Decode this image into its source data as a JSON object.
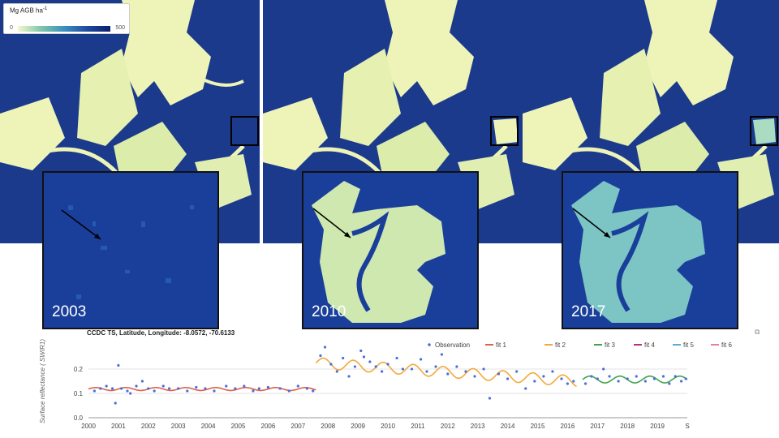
{
  "legend": {
    "title": "Mg AGB ha",
    "exponent": "-1",
    "min": "0",
    "max": "500"
  },
  "panels": [
    {
      "year": "2003"
    },
    {
      "year": "2010"
    },
    {
      "year": "2017"
    }
  ],
  "colors": {
    "low_biomass": "#eef4b8",
    "high_biomass": "#1b3a8c",
    "frame": "#000000"
  },
  "chart_data": {
    "type": "line",
    "title": "CCDC TS, Latitude, Longitude: -8.0572, -70.6133",
    "ylabel": "Surface reflectance ( SWIR1)",
    "xlabel": "",
    "ylim": [
      0,
      0.3
    ],
    "y_ticks": [
      "0.0",
      "0.1",
      "0.2"
    ],
    "x_ticks": [
      "2000",
      "2001",
      "2002",
      "2003",
      "2004",
      "2005",
      "2006",
      "2007",
      "2008",
      "2009",
      "2010",
      "2011",
      "2012",
      "2013",
      "2014",
      "2015",
      "2016",
      "2017",
      "2018",
      "2019",
      "S"
    ],
    "legend_position": "top-right",
    "grid": true,
    "legend": [
      {
        "name": "Observation",
        "color": "#4a6fd8"
      },
      {
        "name": "fit 1",
        "color": "#e0604a"
      },
      {
        "name": "fit 2",
        "color": "#f2a93b"
      },
      {
        "name": "fit 3",
        "color": "#3fa34d"
      },
      {
        "name": "fit 4",
        "color": "#b0308f"
      },
      {
        "name": "fit 5",
        "color": "#5aa9d6"
      },
      {
        "name": "fit 6",
        "color": "#e57fa3"
      }
    ],
    "fits": [
      {
        "name": "fit 1",
        "start": 2000.0,
        "end": 2007.6,
        "mean": 0.118,
        "amp": 0.006
      },
      {
        "name": "fit 2",
        "start": 2007.6,
        "end": 2016.3,
        "mean_start": 0.225,
        "mean_end": 0.15,
        "amp": 0.022
      },
      {
        "name": "fit 3",
        "start": 2016.5,
        "end": 2020.0,
        "mean": 0.157,
        "amp": 0.014
      }
    ],
    "observations": [
      [
        2000.2,
        0.11
      ],
      [
        2000.4,
        0.12
      ],
      [
        2000.6,
        0.13
      ],
      [
        2000.8,
        0.12
      ],
      [
        2000.9,
        0.06
      ],
      [
        2001.0,
        0.215
      ],
      [
        2001.1,
        0.12
      ],
      [
        2001.3,
        0.11
      ],
      [
        2001.4,
        0.1
      ],
      [
        2001.6,
        0.13
      ],
      [
        2001.8,
        0.15
      ],
      [
        2002.0,
        0.12
      ],
      [
        2002.2,
        0.11
      ],
      [
        2002.5,
        0.13
      ],
      [
        2002.7,
        0.12
      ],
      [
        2003.0,
        0.12
      ],
      [
        2003.3,
        0.11
      ],
      [
        2003.6,
        0.125
      ],
      [
        2003.9,
        0.12
      ],
      [
        2004.2,
        0.11
      ],
      [
        2004.6,
        0.13
      ],
      [
        2004.9,
        0.12
      ],
      [
        2005.2,
        0.13
      ],
      [
        2005.5,
        0.11
      ],
      [
        2005.7,
        0.12
      ],
      [
        2006.0,
        0.125
      ],
      [
        2006.4,
        0.12
      ],
      [
        2006.7,
        0.11
      ],
      [
        2007.0,
        0.13
      ],
      [
        2007.3,
        0.12
      ],
      [
        2007.5,
        0.11
      ],
      [
        2007.75,
        0.255
      ],
      [
        2007.9,
        0.29
      ],
      [
        2008.1,
        0.22
      ],
      [
        2008.3,
        0.19
      ],
      [
        2008.5,
        0.245
      ],
      [
        2008.7,
        0.17
      ],
      [
        2008.9,
        0.21
      ],
      [
        2009.1,
        0.275
      ],
      [
        2009.2,
        0.25
      ],
      [
        2009.4,
        0.23
      ],
      [
        2009.6,
        0.21
      ],
      [
        2009.8,
        0.19
      ],
      [
        2010.0,
        0.22
      ],
      [
        2010.3,
        0.245
      ],
      [
        2010.5,
        0.2
      ],
      [
        2010.8,
        0.2
      ],
      [
        2011.1,
        0.24
      ],
      [
        2011.3,
        0.19
      ],
      [
        2011.6,
        0.21
      ],
      [
        2011.8,
        0.26
      ],
      [
        2012.0,
        0.18
      ],
      [
        2012.3,
        0.21
      ],
      [
        2012.6,
        0.19
      ],
      [
        2012.9,
        0.17
      ],
      [
        2013.2,
        0.2
      ],
      [
        2013.4,
        0.08
      ],
      [
        2013.7,
        0.18
      ],
      [
        2014.0,
        0.16
      ],
      [
        2014.3,
        0.19
      ],
      [
        2014.6,
        0.12
      ],
      [
        2014.9,
        0.15
      ],
      [
        2015.2,
        0.17
      ],
      [
        2015.5,
        0.19
      ],
      [
        2015.8,
        0.16
      ],
      [
        2016.0,
        0.14
      ],
      [
        2016.2,
        0.15
      ],
      [
        2016.6,
        0.14
      ],
      [
        2016.8,
        0.17
      ],
      [
        2017.0,
        0.16
      ],
      [
        2017.2,
        0.2
      ],
      [
        2017.4,
        0.17
      ],
      [
        2017.7,
        0.15
      ],
      [
        2018.0,
        0.16
      ],
      [
        2018.3,
        0.17
      ],
      [
        2018.6,
        0.15
      ],
      [
        2018.9,
        0.16
      ],
      [
        2019.2,
        0.17
      ],
      [
        2019.4,
        0.14
      ],
      [
        2019.6,
        0.17
      ],
      [
        2019.8,
        0.15
      ],
      [
        2019.95,
        0.16
      ]
    ]
  }
}
